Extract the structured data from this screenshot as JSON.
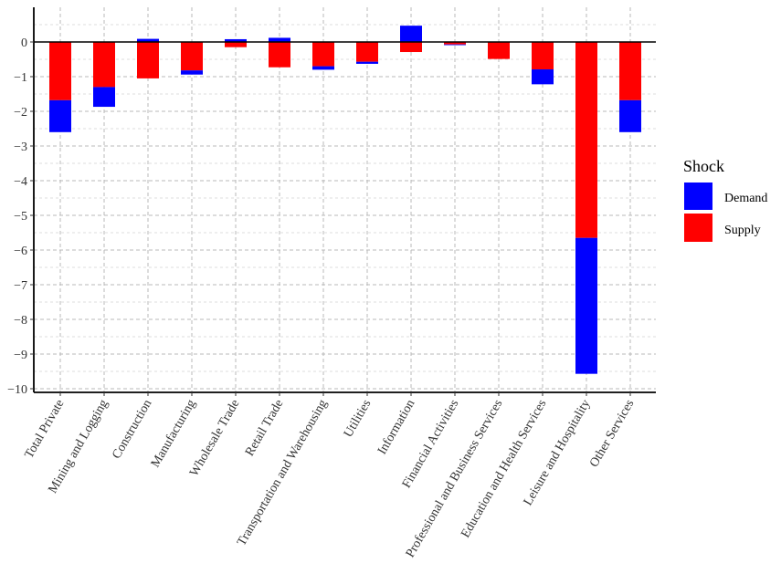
{
  "chart_data": {
    "type": "bar",
    "stacked": true,
    "title": "",
    "xlabel": "",
    "ylabel": "",
    "ylim": [
      -10,
      0.5
    ],
    "yticks": [
      0,
      -1,
      -2,
      -3,
      -4,
      -5,
      -6,
      -7,
      -8,
      -9,
      -10
    ],
    "yticks_display": [
      "0",
      "−1",
      "−2",
      "−3",
      "−4",
      "−5",
      "−6",
      "−7",
      "−8",
      "−9",
      "−10"
    ],
    "grid": true,
    "categories": [
      "Total Private",
      "Mining and Logging",
      "Construction",
      "Manufacturing",
      "Wholesale Trade",
      "Retail Trade",
      "Transportation and Warehousing",
      "Utilities",
      "Information",
      "Financial Activities",
      "Professional and Business Services",
      "Education and Health Services",
      "Leisure and Hospitality",
      "Other Services"
    ],
    "series": [
      {
        "name": "Demand",
        "color": "#0000ff",
        "values": [
          -0.92,
          -0.57,
          0.09,
          -0.12,
          0.08,
          0.12,
          -0.1,
          -0.06,
          0.47,
          -0.01,
          0.0,
          -0.43,
          -3.92,
          -0.92
        ]
      },
      {
        "name": "Supply",
        "color": "#ff0000",
        "values": [
          -1.68,
          -1.3,
          -1.05,
          -0.82,
          -0.15,
          -0.73,
          -0.7,
          -0.57,
          -0.29,
          -0.07,
          -0.49,
          -0.79,
          -5.65,
          -1.68
        ]
      }
    ],
    "legend": {
      "title": "Shock",
      "position": "right",
      "entries": [
        "Demand",
        "Supply"
      ]
    }
  }
}
